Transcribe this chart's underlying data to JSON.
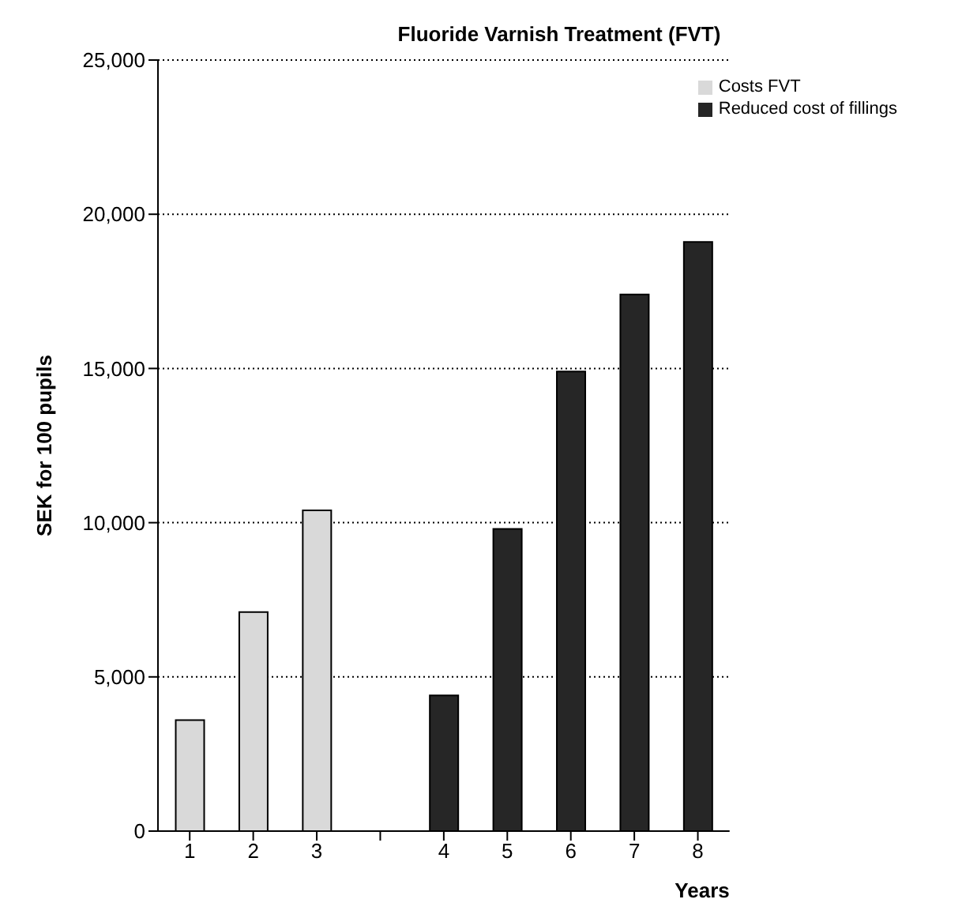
{
  "chart_data": {
    "type": "bar",
    "title": "Fluoride Varnish Treatment (FVT)",
    "xlabel": "Years",
    "ylabel": "SEK for 100 pupils",
    "categories": [
      "1",
      "2",
      "3",
      null,
      "4",
      "5",
      "6",
      "7",
      "8"
    ],
    "series": [
      {
        "name": "Costs FVT",
        "color": "#d9d9d9",
        "values": [
          3600,
          7100,
          10400,
          null,
          null,
          null,
          null,
          null,
          null
        ]
      },
      {
        "name": "Reduced cost of fillings",
        "color": "#262626",
        "values": [
          null,
          null,
          null,
          null,
          4400,
          9800,
          14900,
          17400,
          19100
        ]
      }
    ],
    "ylim": [
      0,
      25000
    ],
    "yticks": [
      {
        "value": 0,
        "label": "0"
      },
      {
        "value": 5000,
        "label": "5,000"
      },
      {
        "value": 10000,
        "label": "10,000"
      },
      {
        "value": 15000,
        "label": "15,000"
      },
      {
        "value": 20000,
        "label": "20,000"
      },
      {
        "value": 25000,
        "label": "25,000"
      }
    ],
    "grid": "y",
    "legend": "top right"
  }
}
